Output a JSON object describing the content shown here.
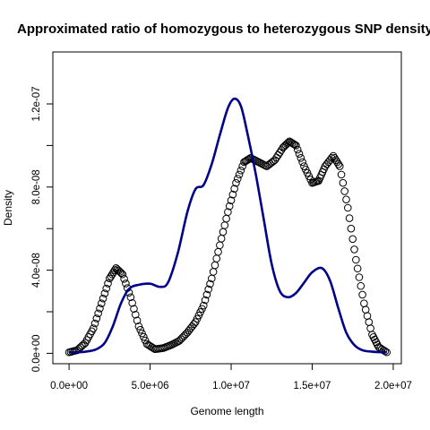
{
  "chart_data": {
    "type": "line",
    "title": "Approximated ratio of homozygous to heterozygous SNP density",
    "xlabel": "Genome length",
    "ylabel": "Density",
    "xlim": [
      -1000000,
      20500000
    ],
    "ylim": [
      -5e-09,
      1.45e-07
    ],
    "x_ticks": [
      0,
      5000000,
      10000000,
      15000000,
      20000000
    ],
    "x_tick_labels": [
      "0.0e+00",
      "5.0e+06",
      "1.0e+07",
      "1.5e+07",
      "2.0e+07"
    ],
    "y_ticks": [
      0,
      2e-08,
      4e-08,
      6e-08,
      8e-08,
      1e-07,
      1.2e-07
    ],
    "y_tick_labels": [
      "0.0e+00",
      "",
      "4.0e-08",
      "",
      "8.0e-08",
      "",
      "1.2e-07"
    ],
    "series": [
      {
        "style": "circles",
        "color": "#000000",
        "points": [
          [
            0,
            5e-10
          ],
          [
            500000,
            1.5e-09
          ],
          [
            1000000,
            5e-09
          ],
          [
            1500000,
            1.2e-08
          ],
          [
            2000000,
            2.4e-08
          ],
          [
            2500000,
            3.6e-08
          ],
          [
            2900000,
            4.1e-08
          ],
          [
            3300000,
            3.8e-08
          ],
          [
            3800000,
            2.7e-08
          ],
          [
            4300000,
            1.3e-08
          ],
          [
            4800000,
            4.5e-09
          ],
          [
            5300000,
            2e-09
          ],
          [
            5800000,
            2.5e-09
          ],
          [
            6300000,
            4e-09
          ],
          [
            6800000,
            6e-09
          ],
          [
            7300000,
            1e-08
          ],
          [
            7800000,
            1.5e-08
          ],
          [
            8300000,
            2.3e-08
          ],
          [
            8800000,
            3.6e-08
          ],
          [
            9300000,
            5.2e-08
          ],
          [
            9800000,
            6.8e-08
          ],
          [
            10300000,
            8.2e-08
          ],
          [
            10800000,
            9.2e-08
          ],
          [
            11200000,
            9.4e-08
          ],
          [
            11700000,
            9.2e-08
          ],
          [
            12200000,
            9e-08
          ],
          [
            12700000,
            9.3e-08
          ],
          [
            13200000,
            9.9e-08
          ],
          [
            13600000,
            1.02e-07
          ],
          [
            14000000,
            1e-07
          ],
          [
            14500000,
            9e-08
          ],
          [
            15000000,
            8.2e-08
          ],
          [
            15400000,
            8.3e-08
          ],
          [
            15800000,
            9e-08
          ],
          [
            16300000,
            9.5e-08
          ],
          [
            16700000,
            9e-08
          ],
          [
            17200000,
            7e-08
          ],
          [
            17700000,
            4.5e-08
          ],
          [
            18200000,
            2.4e-08
          ],
          [
            18700000,
            9e-09
          ],
          [
            19100000,
            3e-09
          ],
          [
            19600000,
            5e-10
          ]
        ]
      },
      {
        "style": "line",
        "color": "#00008b",
        "points": [
          [
            0,
            5e-10
          ],
          [
            600000,
            5e-10
          ],
          [
            1200000,
            1e-09
          ],
          [
            1700000,
            2e-09
          ],
          [
            2200000,
            5e-09
          ],
          [
            2700000,
            1.3e-08
          ],
          [
            3200000,
            2.4e-08
          ],
          [
            3700000,
            3.1e-08
          ],
          [
            4300000,
            3.3e-08
          ],
          [
            5000000,
            3.35e-08
          ],
          [
            5600000,
            3.2e-08
          ],
          [
            6100000,
            3.4e-08
          ],
          [
            6700000,
            4.8e-08
          ],
          [
            7300000,
            6.8e-08
          ],
          [
            7800000,
            7.9e-08
          ],
          [
            8300000,
            8.1e-08
          ],
          [
            8800000,
            9.1e-08
          ],
          [
            9300000,
            1.05e-07
          ],
          [
            9800000,
            1.18e-07
          ],
          [
            10200000,
            1.225e-07
          ],
          [
            10600000,
            1.19e-07
          ],
          [
            11000000,
            1.06e-07
          ],
          [
            11500000,
            8.7e-08
          ],
          [
            12000000,
            6.5e-08
          ],
          [
            12500000,
            4.3e-08
          ],
          [
            13000000,
            3e-08
          ],
          [
            13500000,
            2.7e-08
          ],
          [
            14000000,
            2.9e-08
          ],
          [
            14500000,
            3.4e-08
          ],
          [
            15000000,
            3.9e-08
          ],
          [
            15600000,
            4.1e-08
          ],
          [
            16100000,
            3.5e-08
          ],
          [
            16600000,
            2.2e-08
          ],
          [
            17100000,
            1e-08
          ],
          [
            17600000,
            4e-09
          ],
          [
            18100000,
            1.5e-09
          ],
          [
            18700000,
            8e-10
          ],
          [
            19300000,
            5e-10
          ],
          [
            19600000,
            5e-10
          ]
        ]
      }
    ]
  }
}
